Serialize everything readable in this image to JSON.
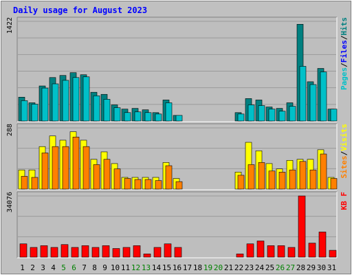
{
  "colors": {
    "background": "#c0c0c0",
    "plot_bg": "#bebebe",
    "grid": "#9a9a9a",
    "title": "#0000ff",
    "pages": "#00c0c8",
    "hits": "#008080",
    "files": "#0000ff",
    "sites": "#ff8000",
    "visits": "#ffff00",
    "kbf": "#ff0000",
    "weekend": "#008000",
    "weekday": "#000000"
  },
  "chart_data": {
    "type": "bar",
    "title": "Daily usage for August 2023",
    "categories": [
      "1",
      "2",
      "3",
      "4",
      "5",
      "6",
      "7",
      "8",
      "9",
      "10",
      "11",
      "12",
      "13",
      "14",
      "15",
      "16",
      "17",
      "18",
      "19",
      "20",
      "21",
      "22",
      "23",
      "24",
      "25",
      "26",
      "27",
      "28",
      "29",
      "30",
      "31"
    ],
    "weekend_days": [
      "5",
      "6",
      "12",
      "13",
      "19",
      "20",
      "26",
      "27"
    ],
    "panels": [
      {
        "id": "top",
        "max_label": "1422",
        "ylim": [
          0,
          1422
        ],
        "right_label": {
          "parts": [
            "Pages",
            "/",
            "Files",
            "/",
            "Hits"
          ],
          "colors": [
            "pages",
            "weekday",
            "files",
            "weekday",
            "hits"
          ]
        },
        "series": [
          {
            "name": "Hits",
            "values": [
              340,
              260,
              500,
              620,
              650,
              690,
              660,
              410,
              380,
              230,
              170,
              180,
              160,
              120,
              300,
              80,
              0,
              0,
              0,
              0,
              0,
              120,
              320,
              300,
              200,
              180,
              260,
              1380,
              560,
              750,
              170
            ]
          },
          {
            "name": "Files",
            "values": [
              0,
              0,
              0,
              0,
              0,
              0,
              0,
              0,
              0,
              0,
              0,
              0,
              0,
              0,
              0,
              0,
              0,
              0,
              0,
              0,
              0,
              0,
              0,
              0,
              0,
              0,
              0,
              0,
              0,
              0,
              0
            ]
          },
          {
            "name": "Pages",
            "values": [
              290,
              240,
              470,
              530,
              580,
              620,
              630,
              360,
              310,
              190,
              120,
              130,
              120,
              100,
              260,
              80,
              0,
              0,
              0,
              0,
              0,
              100,
              230,
              220,
              170,
              140,
              210,
              780,
              520,
              700,
              170
            ]
          }
        ]
      },
      {
        "id": "middle",
        "max_label": "288",
        "ylim": [
          0,
          288
        ],
        "right_label": {
          "parts": [
            "Sites",
            "/",
            "Visits"
          ],
          "colors": [
            "sites",
            "weekday",
            "visits"
          ]
        },
        "series": [
          {
            "name": "Visits",
            "values": [
              90,
              90,
              200,
              250,
              230,
              270,
              230,
              140,
              175,
              120,
              55,
              55,
              55,
              55,
              125,
              50,
              0,
              0,
              0,
              0,
              0,
              80,
              220,
              180,
              120,
              95,
              135,
              140,
              140,
              185,
              55
            ]
          },
          {
            "name": "Sites",
            "values": [
              60,
              55,
              170,
              200,
              200,
              245,
              200,
              115,
              140,
              95,
              50,
              45,
              45,
              40,
              110,
              35,
              0,
              0,
              0,
              0,
              0,
              65,
              115,
              125,
              85,
              80,
              90,
              130,
              90,
              165,
              50
            ]
          }
        ]
      },
      {
        "id": "bottom",
        "max_label": "34076",
        "ylim": [
          0,
          34076
        ],
        "right_label": {
          "parts": [
            "KB",
            " ",
            "F"
          ],
          "colors": [
            "kbf",
            "kbf",
            "kbf"
          ]
        },
        "series": [
          {
            "name": "KB F",
            "values": [
              7400,
              5400,
              6400,
              5400,
              7000,
              5400,
              6400,
              5400,
              6400,
              4800,
              5400,
              6400,
              1800,
              5400,
              7400,
              5400,
              0,
              0,
              0,
              0,
              0,
              1800,
              7400,
              9000,
              6400,
              6400,
              5400,
              34076,
              7800,
              14000,
              3800
            ]
          }
        ]
      }
    ]
  }
}
